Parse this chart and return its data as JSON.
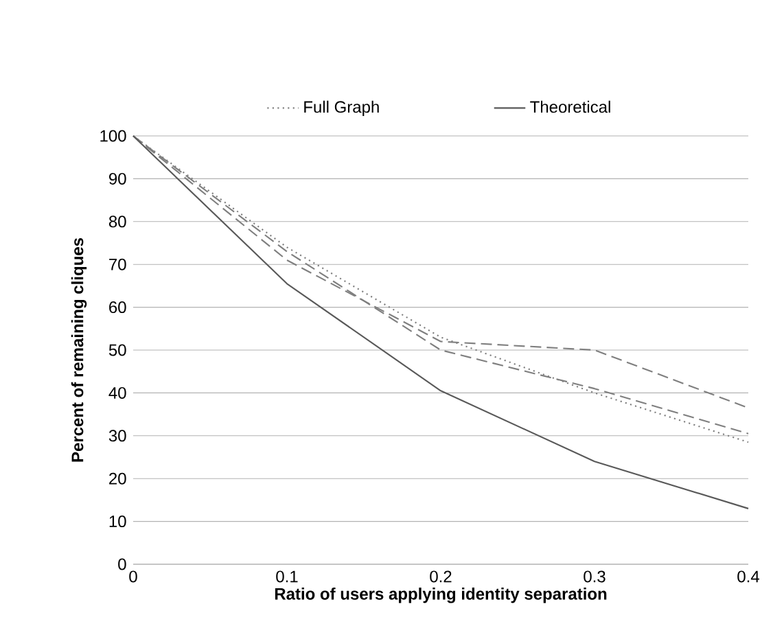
{
  "chart_data": {
    "type": "line",
    "xlabel": "Ratio of users applying identity separation",
    "ylabel": "Percent of remaining cliques",
    "x": [
      0,
      0.1,
      0.2,
      0.3,
      0.4
    ],
    "series": [
      {
        "color": "#7f7f7f",
        "line_style": "dashed",
        "values": [
          100,
          71,
          52,
          50,
          36.5
        ]
      },
      {
        "color": "#7f7f7f",
        "line_style": "dashed",
        "values": [
          100,
          73,
          50,
          41,
          30.5
        ]
      },
      {
        "name": "Full Graph",
        "color": "#7f7f7f",
        "line_style": "dotted",
        "values": [
          100,
          74,
          53,
          40,
          28.5
        ]
      },
      {
        "name": "Theoretical",
        "color": "#595959",
        "line_style": "solid",
        "values": [
          100,
          65.5,
          40.5,
          24,
          13
        ]
      }
    ],
    "xlim": [
      0,
      0.4
    ],
    "ylim": [
      0,
      100
    ],
    "xticks": [
      0,
      0.1,
      0.2,
      0.3,
      0.4
    ],
    "yticks": [
      0,
      10,
      20,
      30,
      40,
      50,
      60,
      70,
      80,
      90,
      100
    ],
    "grid": "y",
    "legend": "top",
    "marker": "none"
  }
}
